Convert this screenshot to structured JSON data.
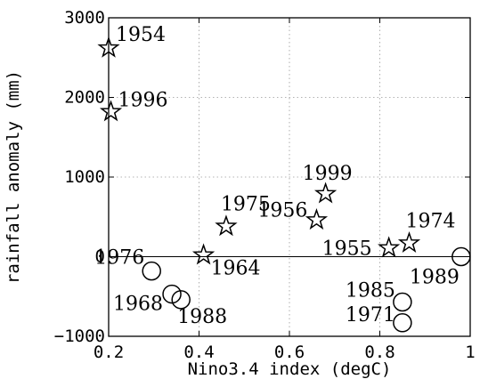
{
  "chart_data": {
    "type": "scatter",
    "title": "",
    "xlabel": "Nino3.4 index (degC)",
    "ylabel": "rainfall anomaly (mm)",
    "xlim": [
      0.2,
      1.0
    ],
    "ylim": [
      -1000,
      3000
    ],
    "xticks": [
      0.2,
      0.4,
      0.6,
      0.8,
      1.0
    ],
    "xtick_labels": [
      "0.2",
      "0.4",
      "0.6",
      "0.8",
      "1"
    ],
    "yticks": [
      -1000,
      0,
      1000,
      2000,
      3000
    ],
    "ytick_labels": [
      "−1000",
      "0",
      "1000",
      "2000",
      "3000"
    ],
    "grid": true,
    "zero_line": true,
    "series": [
      {
        "marker": "star",
        "points": [
          {
            "label": "1954",
            "x": 0.2,
            "y": 2620
          },
          {
            "label": "1996",
            "x": 0.205,
            "y": 1820
          },
          {
            "label": "1964",
            "x": 0.41,
            "y": 20
          },
          {
            "label": "1975",
            "x": 0.46,
            "y": 380
          },
          {
            "label": "1956",
            "x": 0.66,
            "y": 460
          },
          {
            "label": "1999",
            "x": 0.68,
            "y": 790
          },
          {
            "label": "1955",
            "x": 0.82,
            "y": 110
          },
          {
            "label": "1974",
            "x": 0.865,
            "y": 170
          }
        ]
      },
      {
        "marker": "circle",
        "points": [
          {
            "label": "1976",
            "x": 0.295,
            "y": -180
          },
          {
            "label": "1968",
            "x": 0.34,
            "y": -470
          },
          {
            "label": "1988",
            "x": 0.36,
            "y": -540
          },
          {
            "label": "1985",
            "x": 0.85,
            "y": -570
          },
          {
            "label": "1971",
            "x": 0.85,
            "y": -830
          },
          {
            "label": "1989",
            "x": 0.98,
            "y": 0
          }
        ]
      }
    ]
  }
}
